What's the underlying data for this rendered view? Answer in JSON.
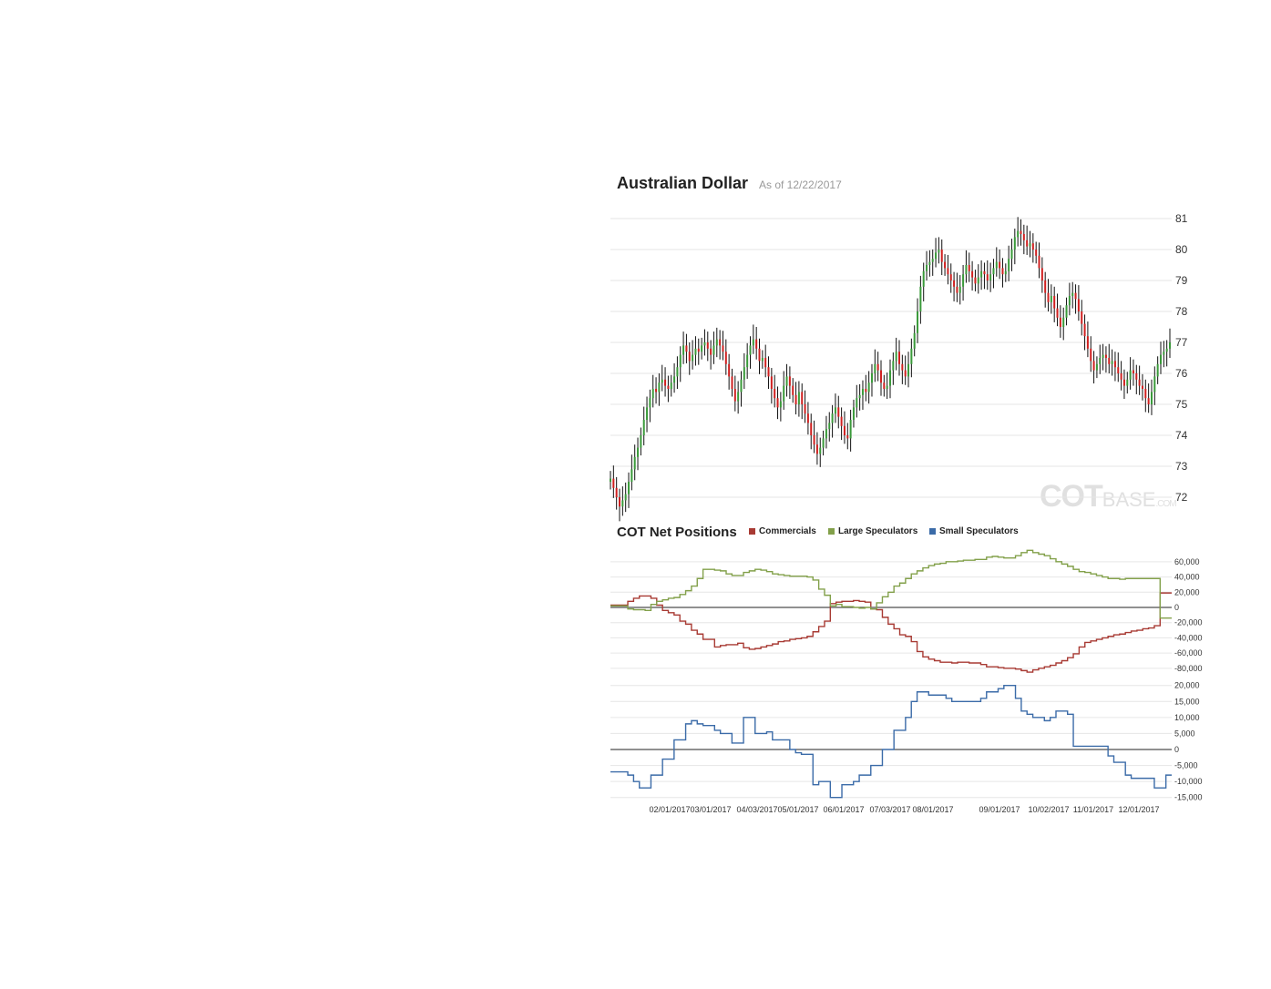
{
  "header": {
    "title": "Australian Dollar",
    "as_of": "As of 12/22/2017"
  },
  "cot": {
    "title": "COT Net Positions"
  },
  "watermark": {
    "cot": "COT",
    "base": "BASE",
    "com": ".COM"
  },
  "colors": {
    "commercials": "#a83a33",
    "large": "#82a04a",
    "small": "#3b6ba8",
    "up": "#3a9a3a",
    "down": "#d02020",
    "wick": "#111111",
    "grid": "#e6e6e6"
  },
  "chart_data": [
    {
      "type": "candlestick",
      "title": "Australian Dollar",
      "ylim": [
        71.5,
        81.3
      ],
      "yticks": [
        "81",
        "80",
        "79",
        "78",
        "77",
        "76",
        "75",
        "74",
        "73",
        "72"
      ],
      "close_series": [
        72.6,
        72.3,
        72.0,
        71.7,
        71.9,
        72.1,
        72.5,
        72.9,
        73.3,
        73.6,
        74.0,
        74.5,
        74.9,
        75.2,
        75.5,
        75.4,
        75.7,
        75.8,
        75.6,
        75.5,
        75.7,
        75.9,
        76.2,
        76.6,
        76.9,
        76.7,
        76.4,
        76.6,
        76.8,
        76.7,
        76.9,
        77.0,
        76.8,
        76.6,
        76.9,
        77.1,
        76.9,
        76.7,
        76.3,
        75.9,
        75.5,
        75.1,
        75.4,
        75.8,
        76.2,
        76.6,
        76.9,
        77.1,
        76.8,
        76.4,
        76.5,
        76.2,
        75.9,
        75.5,
        75.2,
        74.9,
        75.1,
        75.6,
        75.9,
        75.6,
        75.3,
        75.0,
        75.4,
        75.0,
        74.7,
        74.4,
        74.0,
        73.7,
        73.4,
        73.6,
        73.9,
        74.2,
        74.4,
        74.7,
        74.9,
        74.6,
        74.3,
        74.0,
        73.9,
        74.5,
        74.9,
        75.2,
        75.3,
        75.5,
        75.4,
        75.7,
        76.0,
        76.3,
        76.1,
        75.7,
        75.5,
        75.6,
        76.1,
        76.4,
        76.7,
        76.3,
        76.1,
        75.9,
        76.3,
        76.8,
        77.3,
        78.0,
        78.8,
        79.3,
        79.5,
        79.6,
        79.7,
        79.9,
        80.0,
        79.6,
        79.4,
        79.2,
        79.0,
        78.8,
        78.6,
        78.8,
        79.2,
        79.5,
        79.3,
        79.1,
        78.9,
        79.1,
        79.3,
        79.2,
        79.0,
        79.2,
        79.4,
        79.6,
        79.4,
        79.2,
        79.3,
        79.7,
        80.0,
        80.4,
        80.6,
        80.5,
        80.3,
        80.1,
        80.2,
        80.0,
        79.8,
        79.4,
        79.0,
        78.6,
        78.3,
        78.5,
        78.1,
        77.8,
        77.5,
        77.8,
        78.2,
        78.5,
        78.6,
        78.4,
        78.0,
        77.6,
        77.2,
        76.8,
        76.4,
        76.1,
        76.3,
        76.5,
        76.6,
        76.5,
        76.3,
        76.4,
        76.2,
        76.0,
        75.8,
        75.6,
        75.8,
        76.1,
        76.0,
        75.8,
        75.6,
        75.5,
        75.2,
        75.0,
        75.4,
        75.9,
        76.3,
        76.6,
        76.7,
        76.8,
        77.0
      ]
    },
    {
      "type": "line",
      "title": "COT Net Positions",
      "ylim": [
        -95000,
        70000
      ],
      "yticks": [
        "60,000",
        "40,000",
        "20,000",
        "0",
        "-20,000",
        "-40,000",
        "-60,000",
        "-80,000"
      ],
      "series": [
        {
          "name": "Commercials",
          "values": [
            3000,
            3000,
            3000,
            8000,
            12000,
            15000,
            15000,
            12000,
            3000,
            -4000,
            -7000,
            -10000,
            -18000,
            -22000,
            -30000,
            -35000,
            -42000,
            -42000,
            -52000,
            -50000,
            -49000,
            -49000,
            -47000,
            -53000,
            -55000,
            -54000,
            -52000,
            -50000,
            -48000,
            -45000,
            -44000,
            -42000,
            -41000,
            -40000,
            -38000,
            -32000,
            -25000,
            -18000,
            5000,
            7000,
            8000,
            8000,
            9000,
            8000,
            7000,
            -2000,
            -3000,
            -13000,
            -22000,
            -28000,
            -36000,
            -38000,
            -45000,
            -58000,
            -65000,
            -68000,
            -70000,
            -72000,
            -72000,
            -73000,
            -72000,
            -72000,
            -73000,
            -73000,
            -75000,
            -78000,
            -78000,
            -79000,
            -80000,
            -80000,
            -81000,
            -83000,
            -85000,
            -82000,
            -80000,
            -78000,
            -76000,
            -73000,
            -70000,
            -66000,
            -61000,
            -52000,
            -46000,
            -44000,
            -42000,
            -40000,
            -38000,
            -36000,
            -35000,
            -33000,
            -31000,
            -30000,
            -28000,
            -27000,
            -24000,
            19000,
            19000,
            19000
          ]
        },
        {
          "name": "Large Speculators",
          "values": [
            2000,
            2000,
            2000,
            -2000,
            -3000,
            -3000,
            -4000,
            4000,
            8000,
            10000,
            12000,
            13000,
            17000,
            22000,
            28000,
            38000,
            50000,
            50000,
            49000,
            48000,
            44000,
            42000,
            42000,
            46000,
            48000,
            50000,
            49000,
            47000,
            44000,
            43000,
            42000,
            41000,
            41000,
            41000,
            40000,
            36000,
            24000,
            16000,
            2000,
            4000,
            1000,
            1000,
            0,
            -1000,
            0,
            -2000,
            6000,
            14000,
            20000,
            28000,
            32000,
            38000,
            44000,
            48000,
            52000,
            55000,
            57000,
            58000,
            60000,
            60000,
            61000,
            62000,
            62000,
            63000,
            63000,
            66000,
            67000,
            66000,
            65000,
            65000,
            68000,
            72000,
            75000,
            72000,
            70000,
            68000,
            64000,
            60000,
            57000,
            54000,
            50000,
            47000,
            46000,
            44000,
            42000,
            40000,
            38000,
            38000,
            37000,
            38000,
            38000,
            38000,
            38000,
            38000,
            38000,
            -14000,
            -14000,
            -14000
          ]
        },
        {
          "name": "Small Speculators",
          "values": [
            -7000,
            -7000,
            -7000,
            -8000,
            -10000,
            -12000,
            -12000,
            -8000,
            -8000,
            -3000,
            -3000,
            3000,
            3000,
            8000,
            9000,
            8000,
            7500,
            7500,
            6000,
            5000,
            5000,
            2000,
            2000,
            10000,
            10000,
            5000,
            5000,
            5500,
            3000,
            3000,
            3000,
            0,
            -1000,
            -1500,
            -1500,
            -11000,
            -10000,
            -10000,
            -15000,
            -15000,
            -11000,
            -11000,
            -10000,
            -8000,
            -8000,
            -5000,
            -5000,
            0,
            0,
            6000,
            6000,
            10000,
            15000,
            18000,
            18000,
            17000,
            17000,
            17000,
            16000,
            15000,
            15000,
            15000,
            15000,
            15000,
            16000,
            18000,
            18000,
            19000,
            20000,
            20000,
            16000,
            12000,
            11000,
            10000,
            10000,
            9000,
            10000,
            12000,
            12000,
            11000,
            1000,
            1000,
            1000,
            1000,
            1000,
            1000,
            -2000,
            -4000,
            -4000,
            -8000,
            -9000,
            -9000,
            -9000,
            -9000,
            -12000,
            -12000,
            -8000,
            -8000
          ]
        }
      ],
      "small_ylim": [
        -16000,
        22000
      ],
      "small_yticks": [
        "20,000",
        "15,000",
        "10,000",
        "5,000",
        "0",
        "-5,000",
        "-10,000",
        "-15,000"
      ],
      "xticks": [
        "02/01/2017",
        "03/01/2017",
        "04/03/2017",
        "05/01/2017",
        "06/01/2017",
        "07/03/2017",
        "08/01/2017",
        "09/01/2017",
        "10/02/2017",
        "11/01/2017",
        "12/01/2017"
      ]
    }
  ]
}
